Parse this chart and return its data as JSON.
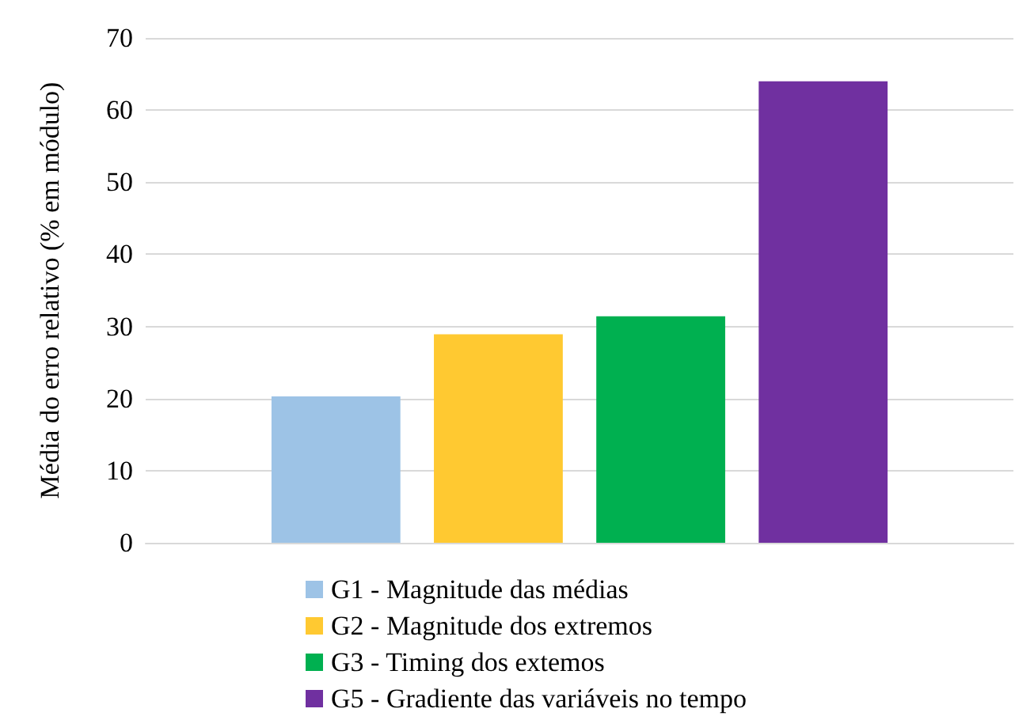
{
  "chart_data": {
    "type": "bar",
    "ylabel": "Média do erro relativo (% em módulo)",
    "categories": [
      null
    ],
    "series": [
      {
        "name": "G1 - Magnitude das médias",
        "color": "#9dc3e6",
        "values": [
          20.3
        ]
      },
      {
        "name": "G2 - Magnitude dos extremos",
        "color": "#ffc931",
        "values": [
          28.9
        ]
      },
      {
        "name": "G3 - Timing dos extemos",
        "color": "#00b050",
        "values": [
          31.4
        ]
      },
      {
        "name": "G5 - Gradiente das variáveis no tempo",
        "color": "#7030a0",
        "values": [
          64
        ]
      }
    ],
    "ylim": [
      0,
      70
    ],
    "yticks": [
      0,
      10,
      20,
      30,
      40,
      50,
      60,
      70
    ],
    "grid": "y",
    "legend": "bottom"
  }
}
